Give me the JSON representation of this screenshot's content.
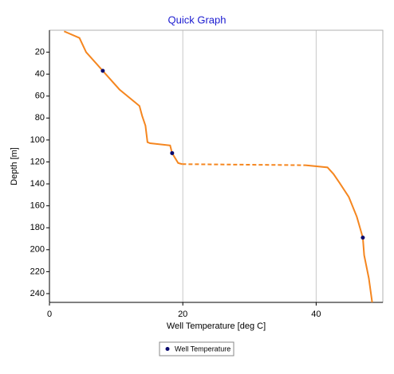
{
  "chart_data": {
    "type": "line",
    "title": "Quick Graph",
    "x_label": "Well Temperature [deg C]",
    "y_label": "Depth [m]",
    "x": [
      2.2,
      4.5,
      5.5,
      8.0,
      10.5,
      13.5,
      13.9,
      14.4,
      14.7,
      15.1,
      18.1,
      18.4,
      19.3,
      19.9,
      38.4,
      41.7,
      42.6,
      43.5,
      44.9,
      46.1,
      47.0,
      47.2,
      47.9,
      48.4
    ],
    "series": [
      {
        "name": "Well Temperature",
        "color": "#f5861f",
        "marker_color": "#0a0a6e",
        "values": [
          1,
          7,
          20,
          37,
          54,
          69,
          78,
          87,
          102,
          103,
          105,
          112,
          121,
          122,
          123,
          125,
          131,
          139,
          152,
          170,
          189,
          205,
          226,
          248
        ],
        "marker_indices": [
          3,
          11,
          20
        ],
        "dashed_segments": [
          13
        ]
      }
    ],
    "xlim": [
      0,
      50
    ],
    "xticks": [
      0,
      20,
      40
    ],
    "ylim": [
      0,
      248
    ],
    "yticks": [
      20,
      40,
      60,
      80,
      100,
      120,
      140,
      160,
      180,
      200,
      220,
      240
    ],
    "y_inverted": true,
    "grid": "x",
    "legend": "bottom"
  }
}
